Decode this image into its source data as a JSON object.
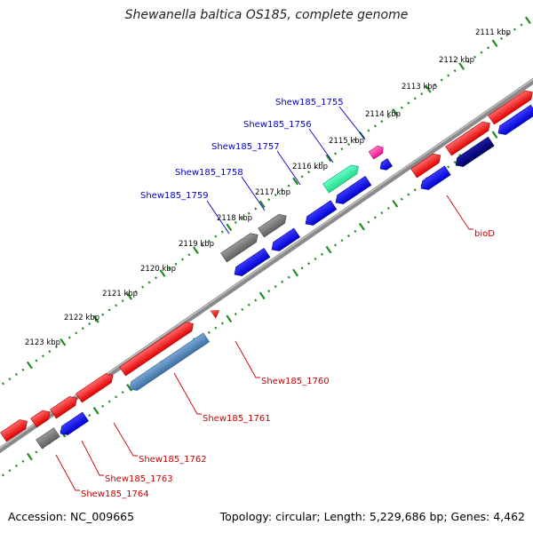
{
  "title": "Shewanella baltica OS185, complete genome",
  "footer": {
    "accession": "Accession: NC_009665",
    "summary": "Topology: circular; Length: 5,229,686 bp; Genes: 4,462"
  },
  "colors": {
    "kbp_ticks": "#228b22",
    "backbone": "#888888",
    "forward_gene": "#ff0000",
    "reverse_gene": "#0000ff",
    "other_gene": "#777777",
    "steel_gene": "#4682b4",
    "green_gene": "#33ee99",
    "pink_gene": "#ff2a9a",
    "navy_gene": "#000080",
    "label_blue": "#0000cc",
    "label_red": "#cc0000"
  },
  "kbp_labels": [
    "2111 kbp",
    "2112 kbp",
    "2113 kbp",
    "2114 kbp",
    "2115 kbp",
    "2116 kbp",
    "2117 kbp",
    "2118 kbp",
    "2119 kbp",
    "2120 kbp",
    "2121 kbp",
    "2122 kbp",
    "2123 kbp"
  ],
  "gene_labels_top": [
    "Shew185_1755",
    "Shew185_1756",
    "Shew185_1757",
    "Shew185_1758",
    "Shew185_1759"
  ],
  "gene_labels_bottom": [
    "bioD",
    "Shew185_1760",
    "Shew185_1761",
    "Shew185_1762",
    "Shew185_1763",
    "Shew185_1764"
  ]
}
